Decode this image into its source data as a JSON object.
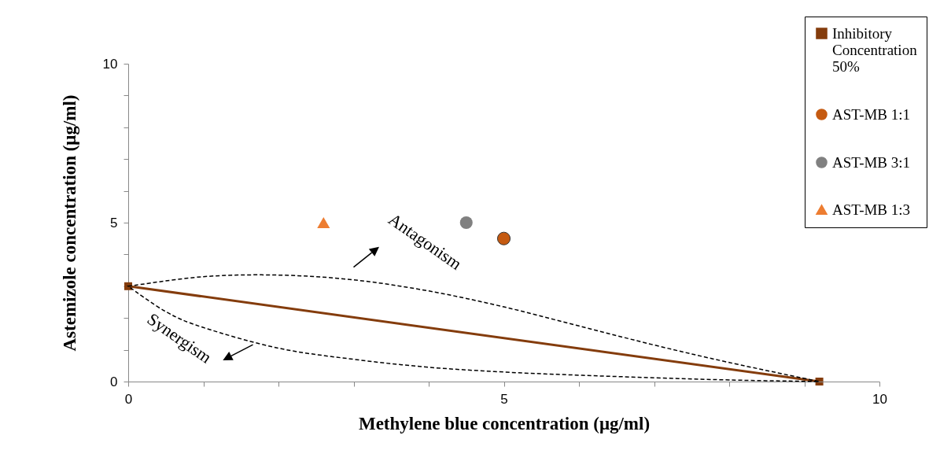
{
  "chart_data": {
    "type": "line",
    "xlabel": "Methylene blue concentration (μg/ml)",
    "ylabel": "Astemizole concentration (μg/ml)",
    "xlim": [
      0,
      10
    ],
    "ylim": [
      0,
      10
    ],
    "xticks": [
      0,
      {
        "value": 1,
        "label": null
      },
      {
        "value": 2,
        "label": null
      },
      {
        "value": 3,
        "label": null
      },
      {
        "value": 4,
        "label": null
      },
      5,
      {
        "value": 6,
        "label": null
      },
      {
        "value": 7,
        "label": null
      },
      {
        "value": 8,
        "label": null
      },
      {
        "value": 9,
        "label": null
      },
      10
    ],
    "yticks": [
      0,
      {
        "value": 1,
        "label": null
      },
      {
        "value": 2,
        "label": null
      },
      {
        "value": 3,
        "label": null
      },
      {
        "value": 4,
        "label": null
      },
      5,
      {
        "value": 6,
        "label": null
      },
      {
        "value": 7,
        "label": null
      },
      {
        "value": 8,
        "label": null
      },
      {
        "value": 9,
        "label": null
      },
      10
    ],
    "grid": false,
    "legend": "top right",
    "series": [
      {
        "name": "Inhibitory Concentration 50%",
        "color": "#843c0c",
        "marker": "square",
        "line_style": "solid",
        "x": [
          0,
          9.2
        ],
        "values": [
          3,
          0
        ]
      },
      {
        "type": "scatter",
        "name": "AST-MB 1:1",
        "color": "#c55a11",
        "marker": "circle",
        "x": [
          5.0
        ],
        "values": [
          4.5
        ]
      },
      {
        "type": "scatter",
        "name": "AST-MB 3:1",
        "color": "#808080",
        "marker": "circle",
        "x": [
          4.5
        ],
        "values": [
          5
        ]
      },
      {
        "type": "scatter",
        "name": "AST-MB 1:3",
        "color": "#ed7d31",
        "marker": "triangle",
        "x": [
          2.6
        ],
        "values": [
          5
        ]
      }
    ],
    "annotations": [
      "Antagonism",
      "Synergism"
    ]
  }
}
